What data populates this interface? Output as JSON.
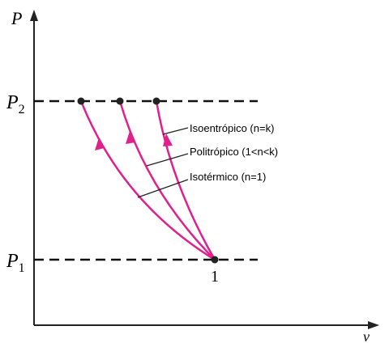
{
  "axes": {
    "y": "P",
    "x": "v"
  },
  "levels": [
    {
      "symbol": "P",
      "subscript": "2"
    },
    {
      "symbol": "P",
      "subscript": "1"
    }
  ],
  "point_label": "1",
  "curves": [
    {
      "label": "Isoentrópico (n=k)"
    },
    {
      "label": "Politrópico (1<n<k)"
    },
    {
      "label": "Isotérmico (n=1)"
    }
  ]
}
